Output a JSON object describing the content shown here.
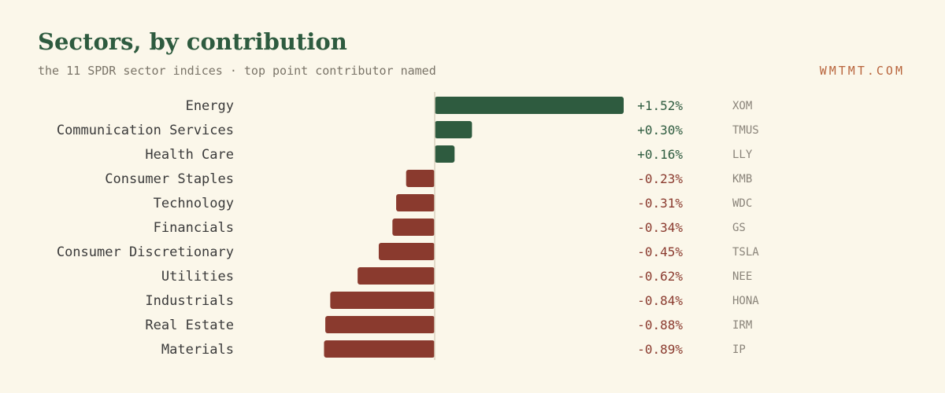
{
  "chart_data": {
    "type": "bar",
    "orientation": "horizontal",
    "title": "Sectors, by contribution",
    "subtitle": "the 11 SPDR sector indices · top point contributor named",
    "categories": [
      "Energy",
      "Communication Services",
      "Health Care",
      "Consumer Staples",
      "Technology",
      "Financials",
      "Consumer Discretionary",
      "Utilities",
      "Industrials",
      "Real Estate",
      "Materials"
    ],
    "values": [
      1.52,
      0.3,
      0.16,
      -0.23,
      -0.31,
      -0.34,
      -0.45,
      -0.62,
      -0.84,
      -0.88,
      -0.89
    ],
    "value_labels": [
      "+1.52%",
      "+0.30%",
      "+0.16%",
      "-0.23%",
      "-0.31%",
      "-0.34%",
      "-0.45%",
      "-0.62%",
      "-0.84%",
      "-0.88%",
      "-0.89%"
    ],
    "top_contributors": [
      "XOM",
      "TMUS",
      "LLY",
      "KMB",
      "WDC",
      "GS",
      "TSLA",
      "NEE",
      "HONA",
      "IRM",
      "IP"
    ],
    "colors": {
      "positive": "#2e5b3f",
      "negative": "#8a3a2e",
      "zero_line": "#d9d2bf",
      "category_text": "#3a3a3a",
      "ticker_text": "#8a847a"
    }
  },
  "branding": {
    "site": "WMTMT.COM"
  }
}
